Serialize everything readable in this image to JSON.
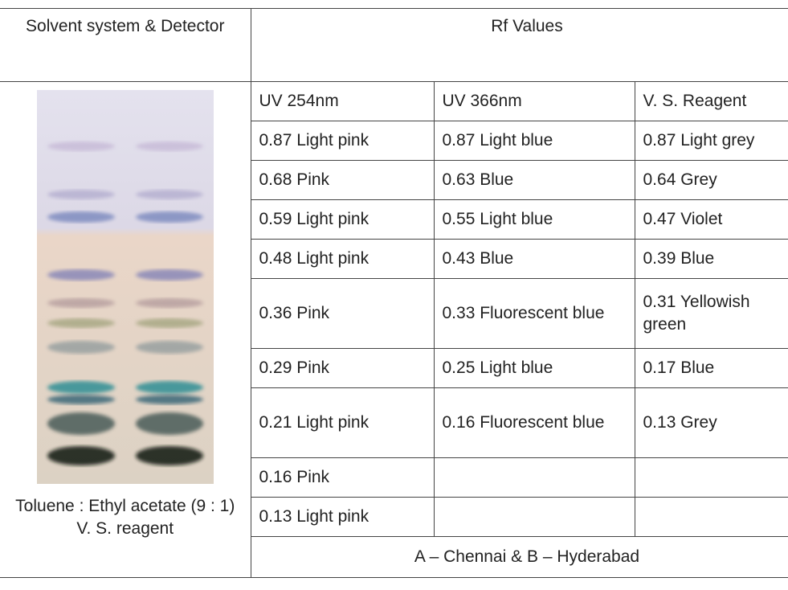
{
  "table": {
    "header": {
      "left": "Solvent system & Detector",
      "right": "Rf Values"
    },
    "subheaders": [
      "UV 254nm",
      "UV 366nm",
      "V. S. Reagent"
    ],
    "rows": [
      [
        "0.87 Light pink",
        "0.87 Light blue",
        "0.87 Light grey"
      ],
      [
        "0.68 Pink",
        "0.63 Blue",
        "0.64 Grey"
      ],
      [
        "0.59 Light pink",
        "0.55 Light blue",
        "0.47 Violet"
      ],
      [
        "0.48 Light pink",
        "0.43 Blue",
        "0.39 Blue"
      ],
      [
        "0.36 Pink",
        "0.33 Fluorescent blue",
        "0.31 Yellowish green"
      ],
      [
        "0.29 Pink",
        "0.25 Light blue",
        "0.17 Blue"
      ],
      [
        "0.21 Light pink",
        "0.16 Fluorescent blue",
        "0.13 Grey"
      ],
      [
        "0.16 Pink"
      ],
      [
        "0.13 Light pink"
      ]
    ],
    "caption": [
      "Toluene : Ethyl acetate (9 : 1)",
      "V. S. reagent"
    ],
    "footer": "A – Chennai & B – Hyderabad"
  }
}
